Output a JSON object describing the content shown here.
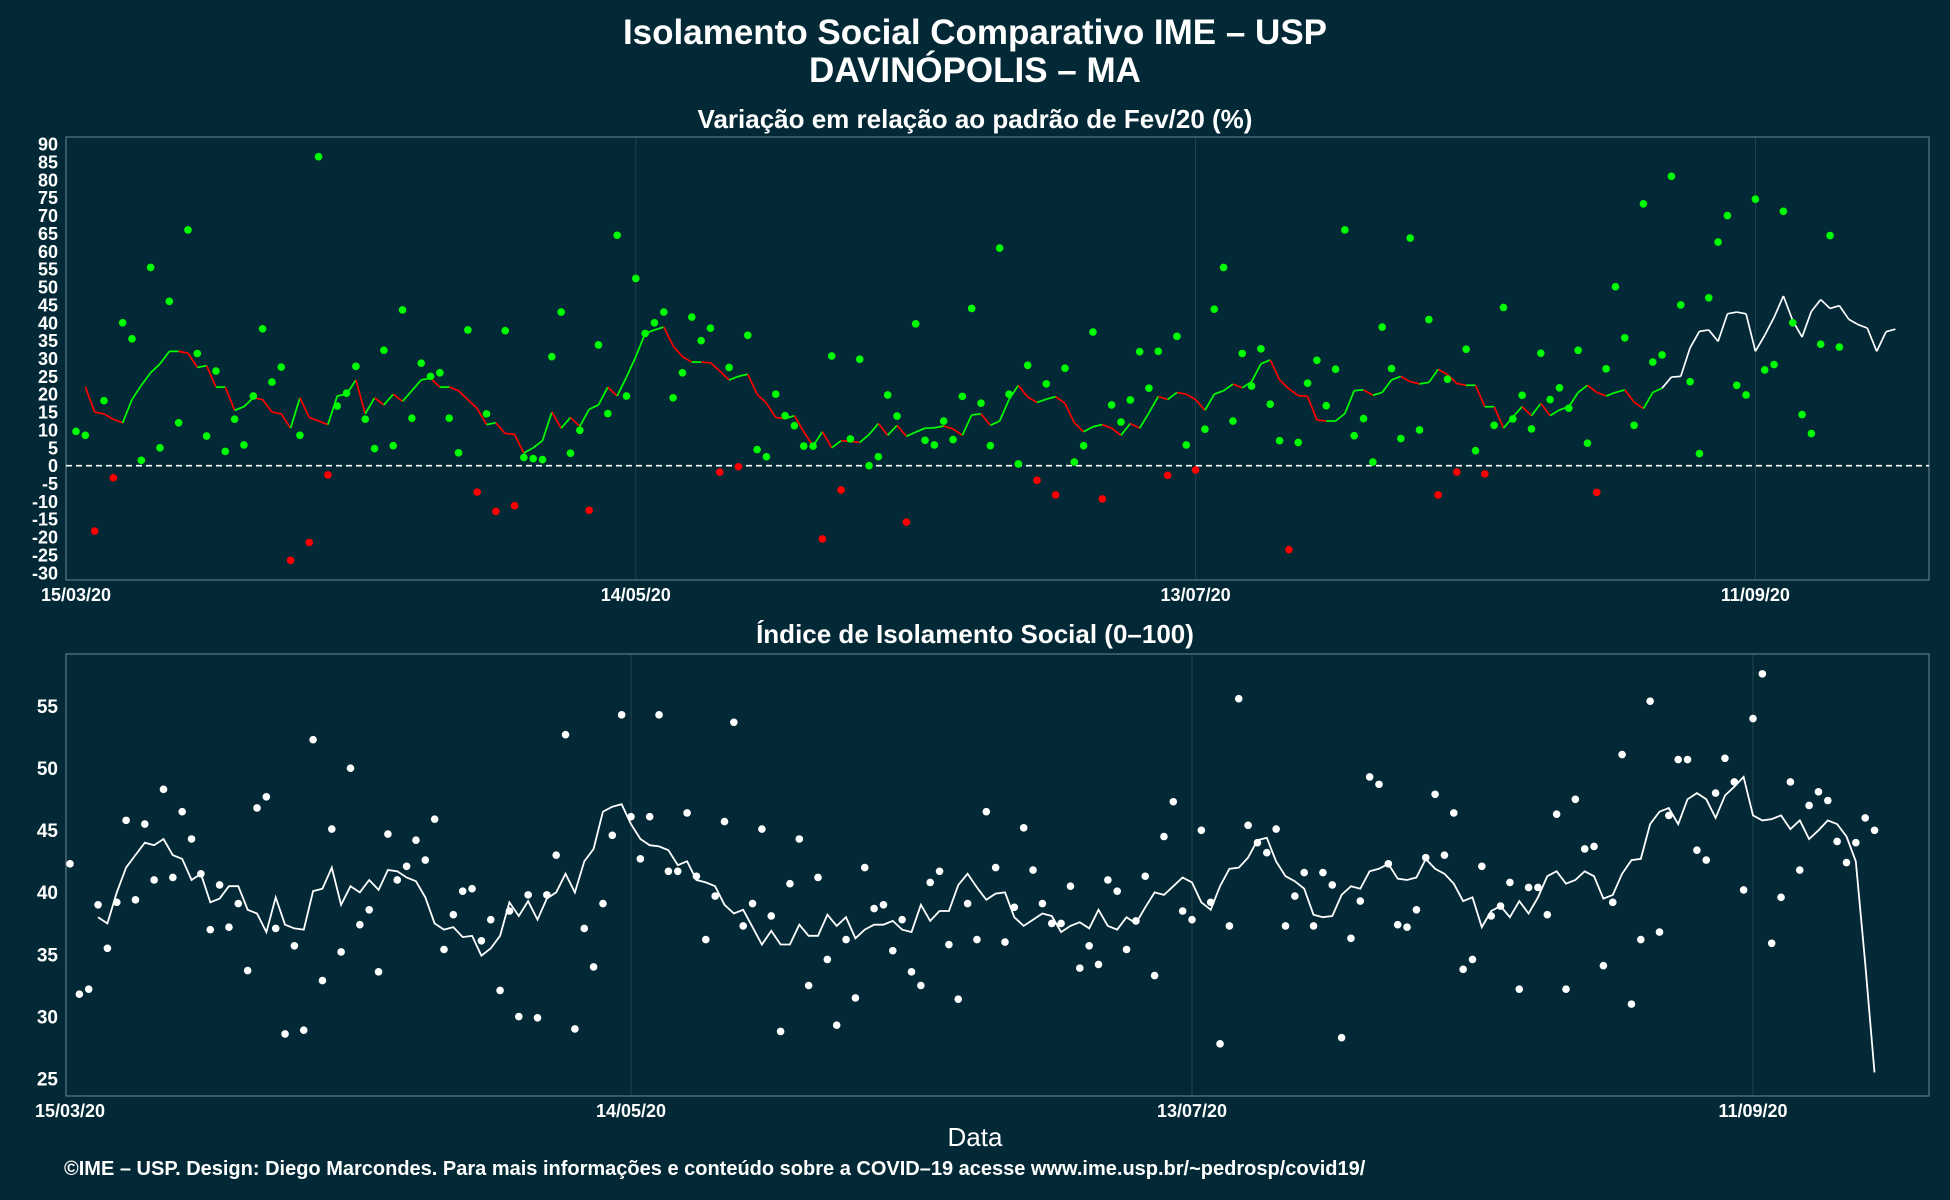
{
  "header": {
    "title": "Isolamento Social Comparativo IME – USP",
    "subtitle": "DAVINÓPOLIS – MA"
  },
  "footer": "©IME – USP. Design: Diego Marcondes. Para mais informações e conteúdo sobre a COVID–19 acesse www.ime.usp.br/~pedrosp/covid19/",
  "colors": {
    "background": "#022935",
    "positive": "#00ff00",
    "negative": "#ff0000",
    "index": "#ffffff",
    "grid": "#21444f"
  },
  "chart_data": [
    {
      "type": "scatter",
      "title": "Variação em relação ao padrão de Fev/20 (%)",
      "xlabel": "",
      "ylabel": "",
      "x_start": "2020-03-15",
      "x_ticks": [
        {
          "date": "2020-03-15",
          "label": "15/03/20"
        },
        {
          "date": "2020-05-14",
          "label": "14/05/20"
        },
        {
          "date": "2020-07-13",
          "label": "13/07/20"
        },
        {
          "date": "2020-09-11",
          "label": "11/09/20"
        }
      ],
      "y_ticks": [
        -30,
        -25,
        -20,
        -15,
        -10,
        -5,
        0,
        5,
        10,
        15,
        20,
        25,
        30,
        35,
        40,
        45,
        50,
        55,
        60,
        65,
        70,
        75,
        80,
        85,
        90
      ],
      "ylim": [
        -32,
        92
      ],
      "reference_line": 0,
      "grid": true,
      "legend": "none",
      "series": [
        {
          "values": [
            9.6,
            8.5,
            -18.3,
            18.2,
            -3.4,
            40,
            35.5,
            1.5,
            55.5,
            5,
            46,
            12,
            66,
            31.4,
            8.3,
            26.5,
            4,
            13,
            5.8,
            19.5,
            38.3,
            23.4,
            27.6,
            -26.5,
            8.5,
            -21.5,
            86.5,
            -2.6,
            16.7,
            20.3,
            27.8,
            13,
            4.8,
            32.3,
            5.6,
            43.6,
            13.3,
            28.7,
            25,
            26,
            13.3,
            3.6,
            38,
            -7.4,
            14.5,
            -12.8,
            37.8,
            -11.2,
            2.3,
            2,
            1.7,
            30.5,
            43,
            3.5,
            9.9,
            -12.5,
            33.8,
            14.6,
            64.5,
            19.5,
            52.4,
            37,
            40,
            43,
            19,
            26,
            41.6,
            35,
            38.5,
            -1.8,
            27.5,
            -0.3,
            36.5,
            4.5,
            2.5,
            20,
            14,
            11.2,
            5.5,
            5.5,
            -20.5,
            30.7,
            -6.8,
            7.5,
            29.8,
            0,
            2.5,
            19.8,
            13.9,
            -15.8,
            39.7,
            7.1,
            5.8,
            12.5,
            7.3,
            19.4,
            44,
            17.5,
            5.6,
            60.9,
            20,
            0.5,
            28.1,
            -4.1,
            22.9,
            -8.2,
            27.3,
            1,
            5.6,
            37.4,
            -9.3,
            17,
            12.2,
            18.4,
            31.9,
            21.7,
            32,
            -2.7,
            36.2,
            5.8,
            -1.2,
            10.2,
            43.8,
            55.5,
            12.5,
            31.4,
            22.3,
            32.7,
            17.2,
            7,
            -23.5,
            6.5,
            23.1,
            29.5,
            16.8,
            27,
            66,
            8.4,
            13.2,
            1,
            38.8,
            27.2,
            7.6,
            63.7,
            10,
            40.9,
            -8.2,
            24.2,
            -1.8,
            32.6,
            4.2,
            -2.3,
            11.3,
            44.3,
            13.1,
            19.7,
            10.3,
            31.5,
            18.5,
            21.8,
            16.1,
            32.3,
            6.3,
            -7.5,
            27.1,
            50.1,
            35.8,
            11.3,
            73.3,
            29,
            31,
            81,
            45,
            23.5,
            3.4,
            47,
            62.6,
            70,
            22.5,
            19.8,
            74.6,
            26.8,
            28.3,
            71.2,
            40,
            14.3,
            9,
            34,
            64.4,
            33.2
          ]
        },
        {
          "values": [
            22,
            15,
            14.5,
            13,
            12,
            18.5,
            22.5,
            26,
            28.5,
            32,
            32,
            31.5,
            27.5,
            28,
            22,
            22,
            15.5,
            16.5,
            19,
            18.5,
            15,
            14.5,
            10.5,
            19,
            13.5,
            12.5,
            11.5,
            19.5,
            20,
            24,
            14.5,
            19,
            17,
            20,
            18,
            21,
            24,
            24.5,
            22,
            22,
            21,
            18.5,
            16,
            11.5,
            12,
            9,
            8.8,
            3.5,
            5,
            7,
            15,
            10.5,
            13.5,
            11,
            15.8,
            17,
            22,
            19.5,
            24.8,
            30.5,
            37,
            38,
            38.8,
            33.5,
            30.5,
            29,
            29,
            28.8,
            26.5,
            24,
            25,
            25.6,
            20,
            17.5,
            13.5,
            13.2,
            14,
            9.5,
            5.5,
            9.5,
            5,
            7,
            6.8,
            6.5,
            8.7,
            11.8,
            8.5,
            11.3,
            8.2,
            9.4,
            10.5,
            10.6,
            11.1,
            10.3,
            8.5,
            14.2,
            14.5,
            11.3,
            12.5,
            18.5,
            22.5,
            19.2,
            17.7,
            18.6,
            19.3,
            17.5,
            12,
            9.5,
            10.9,
            11.5,
            10.5,
            8.5,
            11.8,
            10.5,
            14.8,
            19.4,
            18.5,
            20.5,
            20,
            18.5,
            15.5,
            20,
            21,
            22.8,
            21.8,
            23.5,
            28.5,
            29.6,
            24,
            21.5,
            19.6,
            19.4,
            12.8,
            12.5,
            12.5,
            14.6,
            21,
            21.2,
            19.7,
            20.5,
            24,
            25,
            23.5,
            22.9,
            23.3,
            27,
            25.5,
            23,
            22.5,
            22.5,
            16.5,
            16.5,
            10.5,
            13.6,
            16.5,
            14,
            17.4,
            14,
            15.6,
            16.5,
            20.5,
            22.5,
            20.5,
            19.5,
            20.5,
            21.2,
            17.8,
            16,
            20.5,
            21.7,
            24.8,
            25,
            33,
            37.6,
            38,
            34.8,
            42.5,
            43,
            42.5,
            32,
            36.5,
            41.5,
            47.5,
            40.6,
            36,
            43.2,
            46.5,
            44,
            44.8,
            41,
            39.5,
            38.5,
            32,
            37.5,
            38.2
          ]
        }
      ]
    },
    {
      "type": "scatter",
      "title": "Índice de Isolamento Social (0–100)",
      "xlabel": "Data",
      "ylabel": "",
      "x_start": "2020-03-15",
      "x_ticks": [
        {
          "date": "2020-03-15",
          "label": "15/03/20"
        },
        {
          "date": "2020-05-14",
          "label": "14/05/20"
        },
        {
          "date": "2020-07-13",
          "label": "13/07/20"
        },
        {
          "date": "2020-09-11",
          "label": "11/09/20"
        }
      ],
      "y_ticks": [
        25,
        30,
        35,
        40,
        45,
        50,
        55
      ],
      "ylim": [
        23.6,
        59.2
      ],
      "grid": true,
      "legend": "none",
      "series": [
        {
          "values": [
            42.3,
            31.8,
            32.2,
            39,
            35.5,
            39.2,
            45.8,
            39.4,
            45.5,
            41,
            48.3,
            41.2,
            46.5,
            44.3,
            41.5,
            37,
            40.6,
            37.2,
            39.1,
            33.7,
            46.8,
            47.7,
            37.1,
            28.6,
            35.7,
            28.9,
            52.3,
            32.9,
            45.1,
            35.2,
            50,
            37.4,
            38.6,
            33.6,
            44.7,
            41,
            42.1,
            44.2,
            42.6,
            45.9,
            35.4,
            38.2,
            40.1,
            40.3,
            36.1,
            37.8,
            32.1,
            38.5,
            30,
            39.8,
            29.9,
            39.8,
            43,
            52.7,
            29,
            37.1,
            34,
            39.1,
            44.6,
            54.3,
            46.1,
            42.7,
            46.1,
            54.3,
            41.7,
            41.7,
            46.4,
            41.3,
            36.2,
            39.7,
            45.7,
            53.7,
            37.3,
            39.1,
            45.1,
            38.1,
            28.8,
            40.7,
            44.3,
            32.5,
            41.2,
            34.6,
            29.3,
            36.2,
            31.5,
            42,
            38.7,
            39,
            35.3,
            37.8,
            33.6,
            32.5,
            40.8,
            41.7,
            35.8,
            31.4,
            39.1,
            36.2,
            46.5,
            42,
            36,
            38.8,
            45.2,
            41.8,
            39.1,
            37.5,
            37.5,
            40.5,
            33.9,
            35.7,
            34.2,
            41,
            40.1,
            35.4,
            37.7,
            41.3,
            33.3,
            44.5,
            47.3,
            38.5,
            37.8,
            45,
            39.2,
            27.8,
            37.3,
            55.6,
            45.4,
            44,
            43.2,
            45.1,
            37.3,
            39.7,
            41.6,
            37.3,
            41.6,
            40.6,
            28.3,
            36.3,
            39.3,
            49.3,
            48.7,
            42.3,
            37.4,
            37.2,
            38.6,
            42.8,
            47.9,
            43,
            46.4,
            33.8,
            34.6,
            42.1,
            38.1,
            38.9,
            40.8,
            32.2,
            40.4,
            40.4,
            38.2,
            46.3,
            32.2,
            47.5,
            43.5,
            43.7,
            34.1,
            39.2,
            51.1,
            31,
            36.2,
            55.4,
            36.8,
            46.2,
            50.7,
            50.7,
            43.4,
            42.6,
            48,
            50.8,
            48.9,
            40.2,
            54,
            57.6,
            35.9,
            39.6,
            48.9,
            41.8,
            47,
            48.1,
            47.4,
            44.1,
            42.4,
            44,
            46,
            45
          ]
        },
        {
          "values": [
            38,
            37.5,
            40,
            42,
            43,
            44,
            43.8,
            44.3,
            43,
            42.7,
            41,
            41.5,
            39.2,
            39.5,
            40.5,
            40.5,
            38.6,
            38.3,
            36.8,
            39.6,
            37.4,
            37.1,
            37,
            40.1,
            40.3,
            42,
            39,
            40.5,
            40,
            41,
            40.2,
            41.8,
            41.7,
            41.2,
            40.9,
            39.6,
            37.5,
            37,
            37.2,
            36.4,
            36.5,
            34.9,
            35.5,
            36.5,
            39.2,
            38.1,
            39.3,
            37.8,
            39.5,
            40,
            41.5,
            40,
            42.5,
            43.5,
            46.5,
            46.9,
            47.1,
            45.5,
            44.3,
            43.8,
            43.7,
            43.4,
            42.2,
            42.5,
            41,
            40.8,
            40.5,
            39,
            38.3,
            38.6,
            37.2,
            35.8,
            36.9,
            35.8,
            35.8,
            37.4,
            36.5,
            36.5,
            38.2,
            37.3,
            38,
            36.3,
            37,
            37.4,
            37.4,
            37.7,
            37,
            36.8,
            39,
            37.7,
            38.5,
            38.5,
            40.6,
            41.5,
            40.4,
            39.4,
            39.9,
            40,
            38,
            37.3,
            37.8,
            38.3,
            38.1,
            36.8,
            37.3,
            37.6,
            37.1,
            38.6,
            37.3,
            37,
            38,
            37.5,
            38.8,
            40,
            39.8,
            40.5,
            41.2,
            40.8,
            39.2,
            38.6,
            40.5,
            41.9,
            42,
            42.8,
            44.2,
            44.4,
            42.5,
            41.3,
            40.9,
            40.3,
            38.2,
            38,
            38.1,
            39.8,
            40.5,
            40.3,
            41.7,
            41.9,
            42.3,
            41.1,
            41,
            41.2,
            42.7,
            41.9,
            41.5,
            40.7,
            39.3,
            39.6,
            37.2,
            38.5,
            38.9,
            38,
            39.3,
            38.3,
            39.6,
            41.3,
            41.7,
            40.7,
            41,
            41.7,
            41.3,
            39.5,
            39.8,
            41.5,
            42.6,
            42.7,
            45.5,
            46.5,
            46.8,
            45.5,
            47.5,
            48,
            47.5,
            46,
            47.8,
            48.5,
            49.3,
            46.2,
            45.8,
            45.9,
            46.2,
            45.1,
            45.8,
            44.3,
            45,
            45.8,
            45.5,
            44.5,
            42.5,
            34.3,
            25.5
          ]
        }
      ]
    }
  ]
}
